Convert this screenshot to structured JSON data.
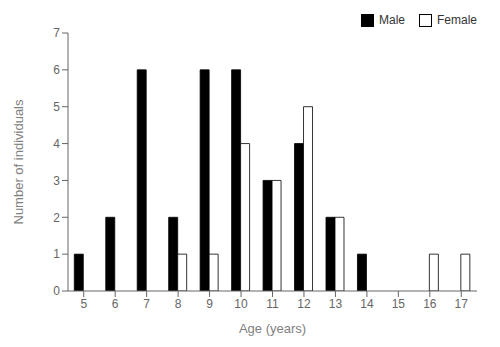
{
  "chart_data": {
    "type": "bar",
    "xlabel": "Age (years)",
    "ylabel": "Number of individuals",
    "categories": [
      "5",
      "6",
      "7",
      "8",
      "9",
      "10",
      "11",
      "12",
      "13",
      "14",
      "15",
      "16",
      "17"
    ],
    "series": [
      {
        "name": "Male",
        "color": "#000000",
        "values": [
          1,
          2,
          6,
          2,
          6,
          6,
          3,
          4,
          2,
          1,
          0,
          0,
          0
        ]
      },
      {
        "name": "Female",
        "color": "#ffffff",
        "values": [
          0,
          0,
          0,
          1,
          1,
          4,
          3,
          5,
          2,
          0,
          0,
          1,
          1
        ]
      }
    ],
    "ylim": [
      0,
      7
    ],
    "yticks": [
      0,
      1,
      2,
      3,
      4,
      5,
      6,
      7
    ],
    "grid": false,
    "legend": "upper right"
  }
}
